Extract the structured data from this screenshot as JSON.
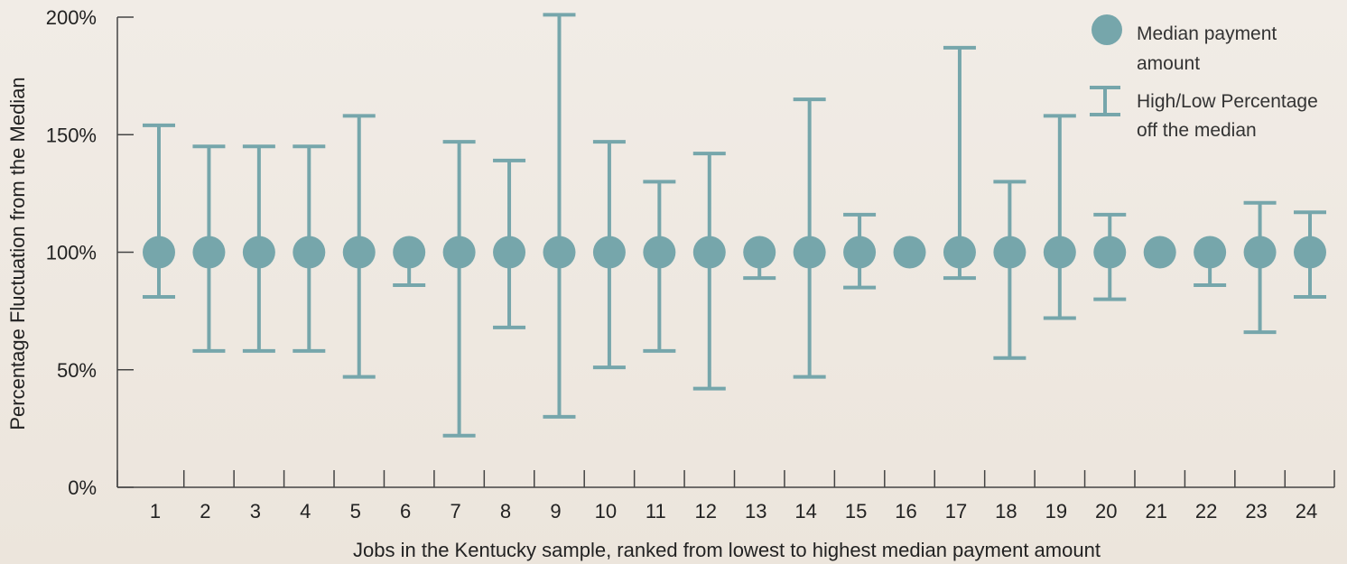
{
  "chart_data": {
    "type": "scatter",
    "title": "",
    "xlabel": "Jobs in the Kentucky sample, ranked from lowest to highest median payment amount",
    "ylabel": "Percentage Fluctuation from the Median",
    "ylim": [
      0,
      200
    ],
    "yticks": [
      "0%",
      "50%",
      "100%",
      "150%",
      "200%"
    ],
    "ytick_values": [
      0,
      50,
      100,
      150,
      200
    ],
    "categories": [
      "1",
      "2",
      "3",
      "4",
      "5",
      "6",
      "7",
      "8",
      "9",
      "10",
      "11",
      "12",
      "13",
      "14",
      "15",
      "16",
      "17",
      "18",
      "19",
      "20",
      "21",
      "22",
      "23",
      "24"
    ],
    "series": [
      {
        "name": "Median payment amount",
        "values": [
          100,
          100,
          100,
          100,
          100,
          100,
          100,
          100,
          100,
          100,
          100,
          100,
          100,
          100,
          100,
          100,
          100,
          100,
          100,
          100,
          100,
          100,
          100,
          100
        ]
      },
      {
        "name": "High/Low Percentage off the median",
        "high": [
          154,
          145,
          145,
          145,
          158,
          100,
          147,
          139,
          201,
          147,
          130,
          142,
          100,
          165,
          116,
          100,
          187,
          130,
          158,
          116,
          100,
          100,
          121,
          117
        ],
        "low": [
          81,
          58,
          58,
          58,
          47,
          86,
          22,
          68,
          30,
          51,
          58,
          42,
          89,
          47,
          85,
          100,
          89,
          55,
          72,
          80,
          100,
          86,
          66,
          81
        ]
      }
    ],
    "grid": false,
    "legend_position": "top-right",
    "colors": {
      "marker": "#76a6ab",
      "axis": "#444444"
    }
  },
  "legend": {
    "median_line1": "Median payment",
    "median_line2": "amount",
    "range_line1": "High/Low Percentage",
    "range_line2": "off the median"
  }
}
